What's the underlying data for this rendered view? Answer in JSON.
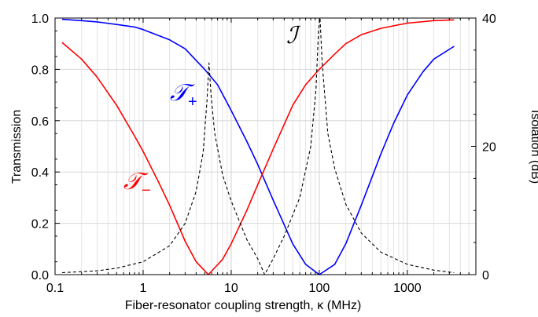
{
  "chart_data": {
    "type": "line",
    "xlabel": "Fiber-resonator coupling strength, κ (MHz)",
    "ylabel": "Transmission",
    "y2label": "Isolation (dB)",
    "xscale": "log",
    "xlim": [
      0.1,
      6000
    ],
    "ylim": [
      0,
      1.0
    ],
    "y2lim": [
      0,
      40
    ],
    "x_ticks": [
      0.1,
      1,
      10,
      100,
      1000
    ],
    "x_tick_labels": [
      "0.1",
      "1",
      "10",
      "100",
      "1000"
    ],
    "y_ticks": [
      0,
      0.2,
      0.4,
      0.6,
      0.8,
      1.0
    ],
    "y_tick_labels": [
      "0.0",
      "0.2",
      "0.4",
      "0.6",
      "0.8",
      "1.0"
    ],
    "y2_ticks": [
      0,
      20,
      40
    ],
    "y2_tick_labels": [
      "0",
      "20",
      "40"
    ],
    "grid": true,
    "series": [
      {
        "name": "𝒯",
        "subscript": "+",
        "color": "#0000ff",
        "style": "solid",
        "axis": "left",
        "x": [
          0.12,
          0.2,
          0.3,
          0.5,
          0.8,
          1,
          2,
          3,
          5,
          7,
          10,
          15,
          20,
          30,
          50,
          70,
          100,
          150,
          200,
          300,
          500,
          700,
          1000,
          1500,
          2000,
          3400
        ],
        "y": [
          0.995,
          0.99,
          0.985,
          0.975,
          0.965,
          0.955,
          0.915,
          0.88,
          0.8,
          0.74,
          0.64,
          0.52,
          0.43,
          0.29,
          0.12,
          0.04,
          0.0,
          0.04,
          0.12,
          0.27,
          0.47,
          0.59,
          0.7,
          0.79,
          0.84,
          0.89
        ]
      },
      {
        "name": "𝒯",
        "subscript": "−",
        "color": "#ff0000",
        "style": "solid",
        "axis": "left",
        "x": [
          0.12,
          0.2,
          0.3,
          0.5,
          0.8,
          1,
          1.5,
          2,
          3,
          4,
          5.5,
          8,
          10,
          15,
          20,
          30,
          50,
          70,
          100,
          150,
          200,
          300,
          500,
          1000,
          2000,
          3400
        ],
        "y": [
          0.905,
          0.84,
          0.77,
          0.66,
          0.54,
          0.48,
          0.36,
          0.27,
          0.13,
          0.05,
          0.0,
          0.06,
          0.12,
          0.25,
          0.35,
          0.49,
          0.66,
          0.74,
          0.8,
          0.86,
          0.9,
          0.935,
          0.96,
          0.98,
          0.99,
          0.993
        ]
      },
      {
        "name": "ℐ",
        "subscript": "",
        "color": "#000000",
        "style": "dashed",
        "axis": "right",
        "x": [
          0.12,
          0.3,
          0.5,
          1,
          2,
          3,
          4,
          4.8,
          5.3,
          5.6,
          5.9,
          6.5,
          8,
          10,
          15,
          20,
          24,
          30,
          40,
          60,
          80,
          92,
          98,
          102,
          108,
          125,
          150,
          200,
          300,
          500,
          1000,
          2000,
          3400
        ],
        "y": [
          0.3,
          0.6,
          1.0,
          2.0,
          4.5,
          8.0,
          13.0,
          19.0,
          27.0,
          33.0,
          28.0,
          22.0,
          15.5,
          11.5,
          5.5,
          2.5,
          0.0,
          2.5,
          6.0,
          12.0,
          20.0,
          29.0,
          38.0,
          40.0,
          33.0,
          22.0,
          16.5,
          11.0,
          6.5,
          3.5,
          1.6,
          0.7,
          0.3
        ]
      }
    ]
  }
}
